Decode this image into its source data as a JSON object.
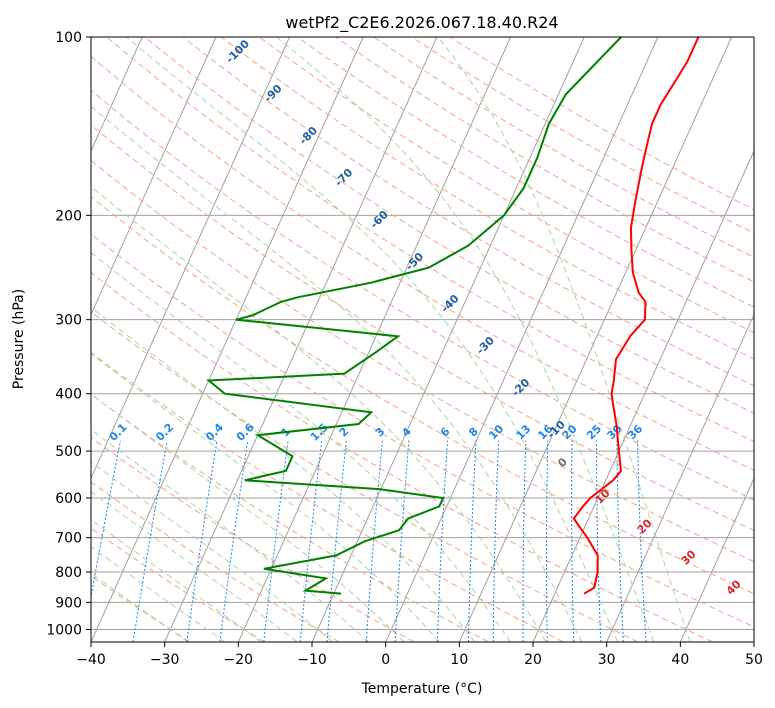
{
  "chart_data": {
    "type": "line",
    "title": "wetPf2_C2E6.2026.067.18.40.R24",
    "xlabel": "Temperature (°C)",
    "ylabel": "Pressure (hPa)",
    "xlim": [
      -40,
      50
    ],
    "ylim": [
      1050,
      100
    ],
    "yscale": "log",
    "x_ticks": [
      -40,
      -30,
      -20,
      -10,
      0,
      10,
      20,
      30,
      40,
      50
    ],
    "y_ticks": [
      100,
      200,
      300,
      400,
      500,
      600,
      700,
      800,
      900,
      1000
    ],
    "grid": true,
    "legend": "none",
    "colors": {
      "temperature": "#ff0000",
      "dewpoint": "#008000",
      "dry_adiabat": "#f4a582",
      "moist_adiabat": "#a6d6a6",
      "mixing_ratio": "#1e88e5",
      "isotherm_grid": "#a0a0a0",
      "dry_label": "#1f5fa0",
      "moist_label": "#d62728",
      "zero_label": "#707070"
    },
    "dry_adiabat_labels": [
      "-100",
      "-90",
      "-80",
      "-70",
      "-60",
      "-50",
      "-40",
      "-30",
      "-20",
      "-10"
    ],
    "zero_label": "0",
    "moist_adiabat_labels": [
      "10",
      "20",
      "30",
      "40"
    ],
    "mixing_ratio_labels": [
      "0.1",
      "0.2",
      "0.4",
      "0.6",
      "1",
      "1.5",
      "2",
      "3",
      "4",
      "6",
      "8",
      "10",
      "13",
      "16",
      "20",
      "25",
      "30",
      "36"
    ],
    "series": [
      {
        "key": "temperature",
        "points": [
          [
            24,
            870
          ],
          [
            25,
            850
          ],
          [
            24.5,
            800
          ],
          [
            23.5,
            750
          ],
          [
            21,
            700
          ],
          [
            18,
            650
          ],
          [
            18.5,
            620
          ],
          [
            19,
            600
          ],
          [
            21,
            560
          ],
          [
            21.5,
            540
          ],
          [
            20,
            500
          ],
          [
            18,
            450
          ],
          [
            16.5,
            420
          ],
          [
            15.5,
            400
          ],
          [
            15,
            380
          ],
          [
            14,
            350
          ],
          [
            14.5,
            320
          ],
          [
            15.5,
            300
          ],
          [
            14.5,
            280
          ],
          [
            13,
            270
          ],
          [
            11,
            250
          ],
          [
            9.5,
            230
          ],
          [
            8,
            210
          ],
          [
            7,
            190
          ],
          [
            6,
            170
          ],
          [
            5.5,
            160
          ],
          [
            5,
            150
          ],
          [
            4.5,
            140
          ],
          [
            4.5,
            130
          ],
          [
            5,
            120
          ],
          [
            5.5,
            110
          ],
          [
            5.5,
            100
          ]
        ]
      },
      {
        "key": "dewpoint",
        "points": [
          [
            -9,
            870
          ],
          [
            -14,
            860
          ],
          [
            -12,
            820
          ],
          [
            -21,
            790
          ],
          [
            -12,
            750
          ],
          [
            -9,
            710
          ],
          [
            -5,
            680
          ],
          [
            -4.5,
            650
          ],
          [
            -1,
            620
          ],
          [
            -1,
            600
          ],
          [
            -10,
            580
          ],
          [
            -29,
            560
          ],
          [
            -24,
            540
          ],
          [
            -24,
            510
          ],
          [
            -30,
            470
          ],
          [
            -17,
            450
          ],
          [
            -16,
            430
          ],
          [
            -37,
            400
          ],
          [
            -40,
            380
          ],
          [
            -22,
            370
          ],
          [
            -19,
            340
          ],
          [
            -17,
            320
          ],
          [
            -40,
            300
          ],
          [
            -38,
            295
          ],
          [
            -35,
            280
          ],
          [
            -33,
            275
          ],
          [
            -24,
            260
          ],
          [
            -17,
            245
          ],
          [
            -13,
            225
          ],
          [
            -10,
            200
          ],
          [
            -9,
            180
          ],
          [
            -9,
            160
          ],
          [
            -9.5,
            140
          ],
          [
            -9,
            125
          ],
          [
            -5,
            100
          ]
        ]
      }
    ]
  }
}
